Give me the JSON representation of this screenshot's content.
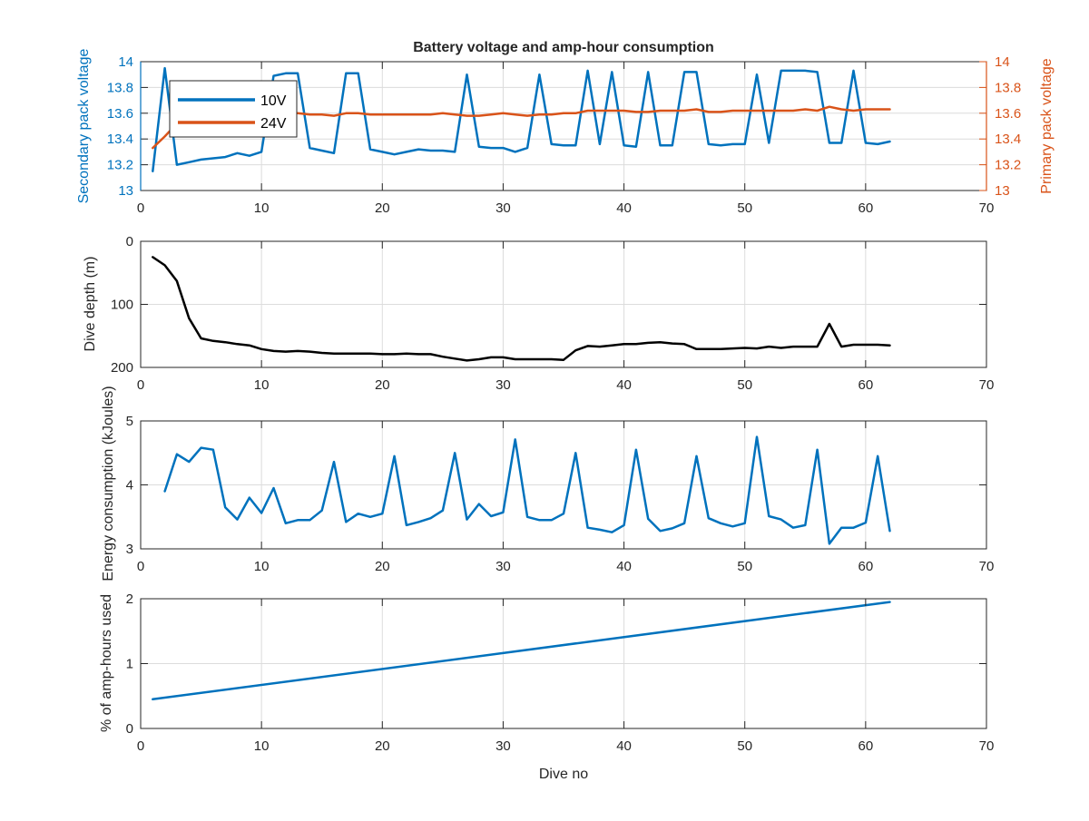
{
  "chart_data": [
    {
      "type": "line",
      "title": "Battery voltage and amp-hour consumption",
      "xlabel": "",
      "ylabel": "Secondary pack voltage",
      "ylabel_right": "Primary pack voltage",
      "xlim": [
        0,
        70
      ],
      "ylim": [
        13,
        14
      ],
      "ylim_right": [
        13,
        14
      ],
      "xticks": [
        "0",
        "10",
        "20",
        "30",
        "40",
        "50",
        "60",
        "70"
      ],
      "yticks": [
        "13",
        "13.2",
        "13.4",
        "13.6",
        "13.8",
        "14"
      ],
      "yticks_right": [
        "13",
        "13.2",
        "13.4",
        "13.6",
        "13.8",
        "14"
      ],
      "grid": true,
      "legend": "top-left",
      "series": [
        {
          "name": "10V",
          "axis": "left",
          "color": "#0072BD",
          "x": [
            1,
            2,
            3,
            4,
            5,
            6,
            7,
            8,
            9,
            10,
            11,
            12,
            13,
            14,
            15,
            16,
            17,
            18,
            19,
            20,
            21,
            22,
            23,
            24,
            25,
            26,
            27,
            28,
            29,
            30,
            31,
            32,
            33,
            34,
            35,
            36,
            37,
            38,
            39,
            40,
            41,
            42,
            43,
            44,
            45,
            46,
            47,
            48,
            49,
            50,
            51,
            52,
            53,
            54,
            55,
            56,
            57,
            58,
            59,
            60,
            61,
            62
          ],
          "values": [
            13.15,
            13.95,
            13.2,
            13.22,
            13.24,
            13.25,
            13.26,
            13.29,
            13.27,
            13.3,
            13.89,
            13.91,
            13.91,
            13.33,
            13.31,
            13.29,
            13.91,
            13.91,
            13.32,
            13.3,
            13.28,
            13.3,
            13.32,
            13.31,
            13.31,
            13.3,
            13.9,
            13.34,
            13.33,
            13.33,
            13.3,
            13.33,
            13.9,
            13.36,
            13.35,
            13.35,
            13.93,
            13.36,
            13.92,
            13.35,
            13.34,
            13.92,
            13.35,
            13.35,
            13.92,
            13.92,
            13.36,
            13.35,
            13.36,
            13.36,
            13.9,
            13.37,
            13.93,
            13.93,
            13.93,
            13.92,
            13.37,
            13.37,
            13.93,
            13.37,
            13.36,
            13.38
          ]
        },
        {
          "name": "24V",
          "axis": "right",
          "color": "#D95319",
          "x": [
            1,
            2,
            3,
            4,
            5,
            6,
            7,
            8,
            9,
            10,
            11,
            12,
            13,
            14,
            15,
            16,
            17,
            18,
            19,
            20,
            21,
            22,
            23,
            24,
            25,
            26,
            27,
            28,
            29,
            30,
            31,
            32,
            33,
            34,
            35,
            36,
            37,
            38,
            39,
            40,
            41,
            42,
            43,
            44,
            45,
            46,
            47,
            48,
            49,
            50,
            51,
            52,
            53,
            54,
            55,
            56,
            57,
            58,
            59,
            60,
            61,
            62
          ],
          "values": [
            13.33,
            13.42,
            13.52,
            13.56,
            13.58,
            13.59,
            13.6,
            13.6,
            13.59,
            13.6,
            13.6,
            13.6,
            13.6,
            13.59,
            13.59,
            13.58,
            13.6,
            13.6,
            13.59,
            13.59,
            13.59,
            13.59,
            13.59,
            13.59,
            13.6,
            13.59,
            13.58,
            13.58,
            13.59,
            13.6,
            13.59,
            13.58,
            13.59,
            13.59,
            13.6,
            13.6,
            13.62,
            13.62,
            13.62,
            13.62,
            13.61,
            13.61,
            13.62,
            13.62,
            13.62,
            13.63,
            13.61,
            13.61,
            13.62,
            13.62,
            13.62,
            13.62,
            13.62,
            13.62,
            13.63,
            13.62,
            13.65,
            13.63,
            13.62,
            13.63,
            13.63,
            13.63
          ]
        }
      ]
    },
    {
      "type": "line",
      "title": "",
      "xlabel": "",
      "ylabel": "Dive depth (m)",
      "xlim": [
        0,
        70
      ],
      "ylim": [
        0,
        200
      ],
      "y_reversed": true,
      "xticks": [
        "0",
        "10",
        "20",
        "30",
        "40",
        "50",
        "60",
        "70"
      ],
      "yticks": [
        "0",
        "100",
        "200"
      ],
      "grid": true,
      "series": [
        {
          "color": "#000000",
          "x": [
            1,
            2,
            3,
            4,
            5,
            6,
            7,
            8,
            9,
            10,
            11,
            12,
            13,
            14,
            15,
            16,
            17,
            18,
            19,
            20,
            21,
            22,
            23,
            24,
            25,
            26,
            27,
            28,
            29,
            30,
            31,
            32,
            33,
            34,
            35,
            36,
            37,
            38,
            39,
            40,
            41,
            42,
            43,
            44,
            45,
            46,
            47,
            48,
            49,
            50,
            51,
            52,
            53,
            54,
            55,
            56,
            57,
            58,
            59,
            60,
            61,
            62
          ],
          "values": [
            25,
            38,
            63,
            122,
            154,
            158,
            160,
            163,
            165,
            171,
            174,
            175,
            174,
            175,
            177,
            178,
            178,
            178,
            178,
            179,
            179,
            178,
            179,
            179,
            183,
            186,
            189,
            187,
            184,
            184,
            187,
            187,
            187,
            187,
            188,
            173,
            166,
            167,
            165,
            163,
            163,
            161,
            160,
            162,
            163,
            171,
            171,
            171,
            170,
            169,
            170,
            167,
            169,
            167,
            167,
            167,
            131,
            167,
            164,
            164,
            164,
            165
          ]
        }
      ]
    },
    {
      "type": "line",
      "title": "",
      "xlabel": "",
      "ylabel": "Energy consumption (kJoules)",
      "xlim": [
        0,
        70
      ],
      "ylim": [
        3,
        5
      ],
      "xticks": [
        "0",
        "10",
        "20",
        "30",
        "40",
        "50",
        "60",
        "70"
      ],
      "yticks": [
        "3",
        "4",
        "5"
      ],
      "grid": true,
      "series": [
        {
          "color": "#0072BD",
          "x": [
            2,
            3,
            4,
            5,
            6,
            7,
            8,
            9,
            10,
            11,
            12,
            13,
            14,
            15,
            16,
            17,
            18,
            19,
            20,
            21,
            22,
            23,
            24,
            25,
            26,
            27,
            28,
            29,
            30,
            31,
            32,
            33,
            34,
            35,
            36,
            37,
            38,
            39,
            40,
            41,
            42,
            43,
            44,
            45,
            46,
            47,
            48,
            49,
            50,
            51,
            52,
            53,
            54,
            55,
            56,
            57,
            58,
            59,
            60,
            61,
            62
          ],
          "values": [
            3.9,
            4.48,
            4.36,
            4.58,
            4.55,
            3.65,
            3.46,
            3.8,
            3.56,
            3.95,
            3.4,
            3.45,
            3.45,
            3.6,
            4.36,
            3.42,
            3.55,
            3.5,
            3.55,
            4.45,
            3.37,
            3.42,
            3.48,
            3.6,
            4.5,
            3.46,
            3.7,
            3.51,
            3.57,
            4.71,
            3.5,
            3.45,
            3.45,
            3.55,
            4.5,
            3.33,
            3.3,
            3.26,
            3.37,
            4.55,
            3.47,
            3.28,
            3.32,
            3.4,
            4.45,
            3.48,
            3.4,
            3.35,
            3.4,
            4.75,
            3.51,
            3.46,
            3.33,
            3.37,
            4.55,
            3.08,
            3.33,
            3.33,
            3.41,
            4.45,
            3.28
          ]
        }
      ]
    },
    {
      "type": "line",
      "title": "",
      "xlabel": "Dive no",
      "ylabel": "% of amp-hours used",
      "xlim": [
        0,
        70
      ],
      "ylim": [
        0,
        2
      ],
      "xticks": [
        "0",
        "10",
        "20",
        "30",
        "40",
        "50",
        "60",
        "70"
      ],
      "yticks": [
        "0",
        "1",
        "2"
      ],
      "grid": true,
      "series": [
        {
          "color": "#0072BD",
          "x": [
            1,
            62
          ],
          "values": [
            0.45,
            1.95
          ]
        }
      ]
    }
  ]
}
